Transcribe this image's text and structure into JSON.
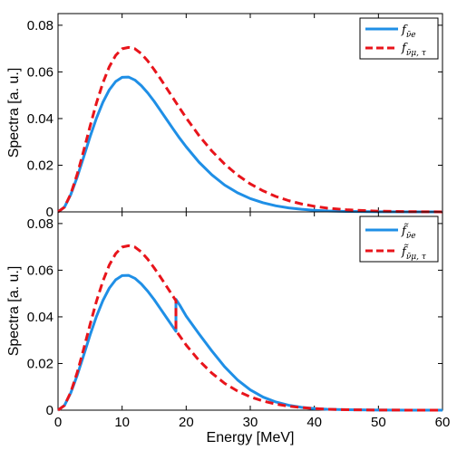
{
  "chart_data": [
    {
      "type": "line",
      "panel": "top",
      "ylabel": "Spectra [a. u.]",
      "xlabel": "",
      "xlim": [
        0,
        60
      ],
      "ylim": [
        0,
        0.085
      ],
      "xticks": [
        "0",
        "10",
        "20",
        "30",
        "40",
        "50",
        "60"
      ],
      "yticks": [
        "0",
        "0.02",
        "0.04",
        "0.06",
        "0.08"
      ],
      "ytick_values": [
        0,
        0.02,
        0.04,
        0.06,
        0.08
      ],
      "xtick_labels_shown": false,
      "legend_position": "top-right",
      "series": [
        {
          "name": "f_ν̄e",
          "legend_main": "f",
          "legend_sub": "ν̄e",
          "color": "#1f8fe6",
          "style": "solid",
          "x": [
            0,
            1,
            2,
            3,
            4,
            5,
            6,
            7,
            8,
            9,
            10,
            11,
            12,
            13,
            14,
            15,
            16,
            17,
            18,
            19,
            20,
            22,
            24,
            26,
            28,
            30,
            32,
            34,
            36,
            38,
            40,
            42,
            45,
            50,
            55,
            60
          ],
          "y": [
            0,
            0.002,
            0.0075,
            0.015,
            0.0235,
            0.0322,
            0.0402,
            0.047,
            0.0523,
            0.0559,
            0.0577,
            0.0578,
            0.0565,
            0.0541,
            0.051,
            0.0474,
            0.0434,
            0.0394,
            0.0354,
            0.0315,
            0.0279,
            0.0213,
            0.0159,
            0.0115,
            0.0082,
            0.0057,
            0.0039,
            0.0026,
            0.0017,
            0.0011,
            0.0007,
            0.0004,
            0.0002,
            5e-05,
            1e-05,
            0
          ]
        },
        {
          "name": "f_ν̄μ,τ",
          "legend_main": "f",
          "legend_sub": "ν̄μ, τ",
          "color": "#e8141b",
          "style": "dashed",
          "x": [
            0,
            1,
            2,
            3,
            4,
            5,
            6,
            7,
            8,
            9,
            10,
            11,
            12,
            13,
            14,
            15,
            16,
            17,
            18,
            19,
            20,
            22,
            24,
            26,
            28,
            30,
            32,
            34,
            36,
            38,
            40,
            42,
            45,
            50,
            55,
            60
          ],
          "y": [
            0,
            0.002,
            0.0078,
            0.0162,
            0.0262,
            0.0367,
            0.0467,
            0.0553,
            0.0622,
            0.0671,
            0.0699,
            0.0705,
            0.0699,
            0.0678,
            0.0647,
            0.061,
            0.057,
            0.0528,
            0.0486,
            0.0444,
            0.0403,
            0.0327,
            0.0261,
            0.0205,
            0.0158,
            0.012,
            0.009,
            0.0066,
            0.0048,
            0.0034,
            0.0024,
            0.0016,
            0.0009,
            0.0003,
            0.0001,
            0
          ]
        }
      ]
    },
    {
      "type": "line",
      "panel": "bottom",
      "ylabel": "Spectra [a. u.]",
      "xlabel": "Energy [MeV]",
      "xlim": [
        0,
        60
      ],
      "ylim": [
        0,
        0.085
      ],
      "xticks": [
        "0",
        "10",
        "20",
        "30",
        "40",
        "50",
        "60"
      ],
      "yticks": [
        "0",
        "0.02",
        "0.04",
        "0.06",
        "0.08"
      ],
      "ytick_values": [
        0,
        0.02,
        0.04,
        0.06,
        0.08
      ],
      "xtick_labels_shown": true,
      "legend_position": "top-right",
      "series": [
        {
          "name": "f̃_ν̄e",
          "legend_main": "f̃",
          "legend_sub": "ν̄e",
          "color": "#1f8fe6",
          "style": "solid",
          "x": [
            0,
            1,
            2,
            3,
            4,
            5,
            6,
            7,
            8,
            9,
            10,
            11,
            12,
            13,
            14,
            15,
            16,
            17,
            18,
            18.4,
            18.4,
            19,
            20,
            22,
            24,
            26,
            28,
            30,
            32,
            34,
            36,
            38,
            40,
            42,
            45,
            50,
            55,
            60
          ],
          "y": [
            0,
            0.002,
            0.0075,
            0.015,
            0.0235,
            0.0322,
            0.0402,
            0.047,
            0.0523,
            0.0559,
            0.0577,
            0.0578,
            0.0565,
            0.0541,
            0.051,
            0.0474,
            0.0434,
            0.0394,
            0.0354,
            0.0338,
            0.0475,
            0.045,
            0.0403,
            0.0327,
            0.0254,
            0.0186,
            0.013,
            0.0087,
            0.0056,
            0.0035,
            0.0021,
            0.0012,
            0.0007,
            0.0004,
            0.0002,
            5e-05,
            1e-05,
            0
          ]
        },
        {
          "name": "f̃_ν̄μ,τ",
          "legend_main": "f̃",
          "legend_sub": "ν̄μ, τ",
          "color": "#e8141b",
          "style": "dashed",
          "x": [
            0,
            1,
            2,
            3,
            4,
            5,
            6,
            7,
            8,
            9,
            10,
            11,
            12,
            13,
            14,
            15,
            16,
            17,
            18,
            18.4,
            18.4,
            19,
            20,
            22,
            24,
            26,
            28,
            30,
            32,
            34,
            36,
            38,
            40,
            42,
            45,
            50,
            55,
            60
          ],
          "y": [
            0,
            0.002,
            0.0078,
            0.0162,
            0.0262,
            0.0367,
            0.0467,
            0.0553,
            0.0622,
            0.0671,
            0.0699,
            0.0705,
            0.0699,
            0.0678,
            0.0647,
            0.061,
            0.057,
            0.0528,
            0.0486,
            0.0469,
            0.0341,
            0.0318,
            0.0279,
            0.0213,
            0.0159,
            0.0115,
            0.0082,
            0.0057,
            0.0039,
            0.0026,
            0.0017,
            0.0011,
            0.0007,
            0.0004,
            0.0002,
            5e-05,
            1e-05,
            0
          ]
        }
      ]
    }
  ]
}
